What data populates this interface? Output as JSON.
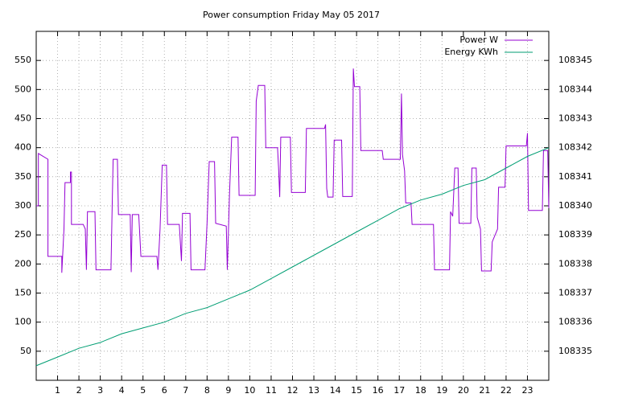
{
  "chart_data": {
    "type": "line",
    "title": "Power consumption Friday May 05 2017",
    "xlim": [
      0,
      24
    ],
    "xticks": [
      1,
      2,
      3,
      4,
      5,
      6,
      7,
      8,
      9,
      10,
      11,
      12,
      13,
      14,
      15,
      16,
      17,
      18,
      19,
      20,
      21,
      22,
      23
    ],
    "ylim": [
      0,
      600
    ],
    "yticks": [
      50,
      100,
      150,
      200,
      250,
      300,
      350,
      400,
      450,
      500,
      550
    ],
    "y2lim": [
      108334,
      108346
    ],
    "y2ticks": [
      108335,
      108336,
      108337,
      108338,
      108339,
      108340,
      108341,
      108342,
      108343,
      108344,
      108345
    ],
    "grid": true,
    "legend": "top-right",
    "series": [
      {
        "name": "Power W",
        "color": "#9400d3",
        "x": [
          0,
          0.1,
          0.1,
          0.55,
          0.55,
          1.2,
          1.2,
          1.3,
          1.35,
          1.6,
          1.6,
          1.65,
          1.65,
          2.2,
          2.3,
          2.35,
          2.4,
          2.75,
          2.8,
          3.5,
          3.55,
          3.6,
          3.8,
          3.85,
          4.4,
          4.45,
          4.5,
          4.8,
          4.9,
          5.65,
          5.7,
          5.8,
          5.9,
          6.1,
          6.15,
          6.7,
          6.8,
          6.85,
          7.2,
          7.25,
          7.9,
          8.0,
          8.1,
          8.35,
          8.4,
          8.9,
          8.95,
          9.05,
          9.15,
          9.45,
          9.5,
          10.25,
          10.3,
          10.4,
          10.7,
          10.75,
          11.3,
          11.35,
          11.4,
          11.45,
          11.9,
          11.95,
          12.6,
          12.65,
          13.5,
          13.55,
          13.6,
          13.65,
          13.9,
          13.95,
          14.3,
          14.35,
          14.8,
          14.85,
          14.9,
          15.15,
          15.2,
          16.2,
          16.25,
          17.05,
          17.1,
          17.15,
          17.25,
          17.3,
          17.55,
          17.6,
          18.6,
          18.65,
          19.35,
          19.4,
          19.5,
          19.6,
          19.75,
          19.8,
          20.35,
          20.4,
          20.6,
          20.65,
          20.8,
          20.85,
          21.3,
          21.35,
          21.6,
          21.65,
          21.95,
          22.0,
          22.95,
          23.0,
          23.05,
          23.7,
          23.75,
          23.95,
          24
        ],
        "values": [
          300,
          300,
          390,
          380,
          213,
          213,
          185,
          260,
          340,
          340,
          358,
          358,
          268,
          268,
          260,
          190,
          290,
          290,
          190,
          190,
          285,
          380,
          380,
          285,
          285,
          186,
          285,
          285,
          213,
          213,
          190,
          260,
          370,
          370,
          268,
          268,
          205,
          287,
          287,
          190,
          190,
          270,
          376,
          376,
          270,
          265,
          190,
          320,
          418,
          418,
          318,
          318,
          480,
          507,
          507,
          400,
          400,
          365,
          315,
          418,
          418,
          323,
          323,
          433,
          433,
          440,
          330,
          315,
          315,
          413,
          413,
          316,
          316,
          536,
          505,
          505,
          395,
          395,
          380,
          380,
          493,
          388,
          360,
          305,
          305,
          268,
          268,
          190,
          190,
          290,
          282,
          365,
          365,
          270,
          270,
          365,
          365,
          280,
          260,
          188,
          188,
          238,
          260,
          332,
          332,
          403,
          403,
          425,
          292,
          292,
          395,
          395,
          296
        ]
      },
      {
        "name": "Energy KWh",
        "color": "#009e73",
        "axis": "y2",
        "x": [
          0,
          1,
          2,
          3,
          4,
          5,
          6,
          7,
          8,
          9,
          10,
          11,
          12,
          13,
          14,
          15,
          16,
          17,
          18,
          19,
          20,
          21,
          22,
          23,
          24
        ],
        "values": [
          108334.5,
          108334.8,
          108335.1,
          108335.3,
          108335.6,
          108335.8,
          108336.0,
          108336.3,
          108336.5,
          108336.8,
          108337.1,
          108337.5,
          108337.9,
          108338.3,
          108338.7,
          108339.1,
          108339.5,
          108339.9,
          108340.2,
          108340.4,
          108340.7,
          108340.9,
          108341.3,
          108341.7,
          108342.0
        ]
      }
    ]
  }
}
